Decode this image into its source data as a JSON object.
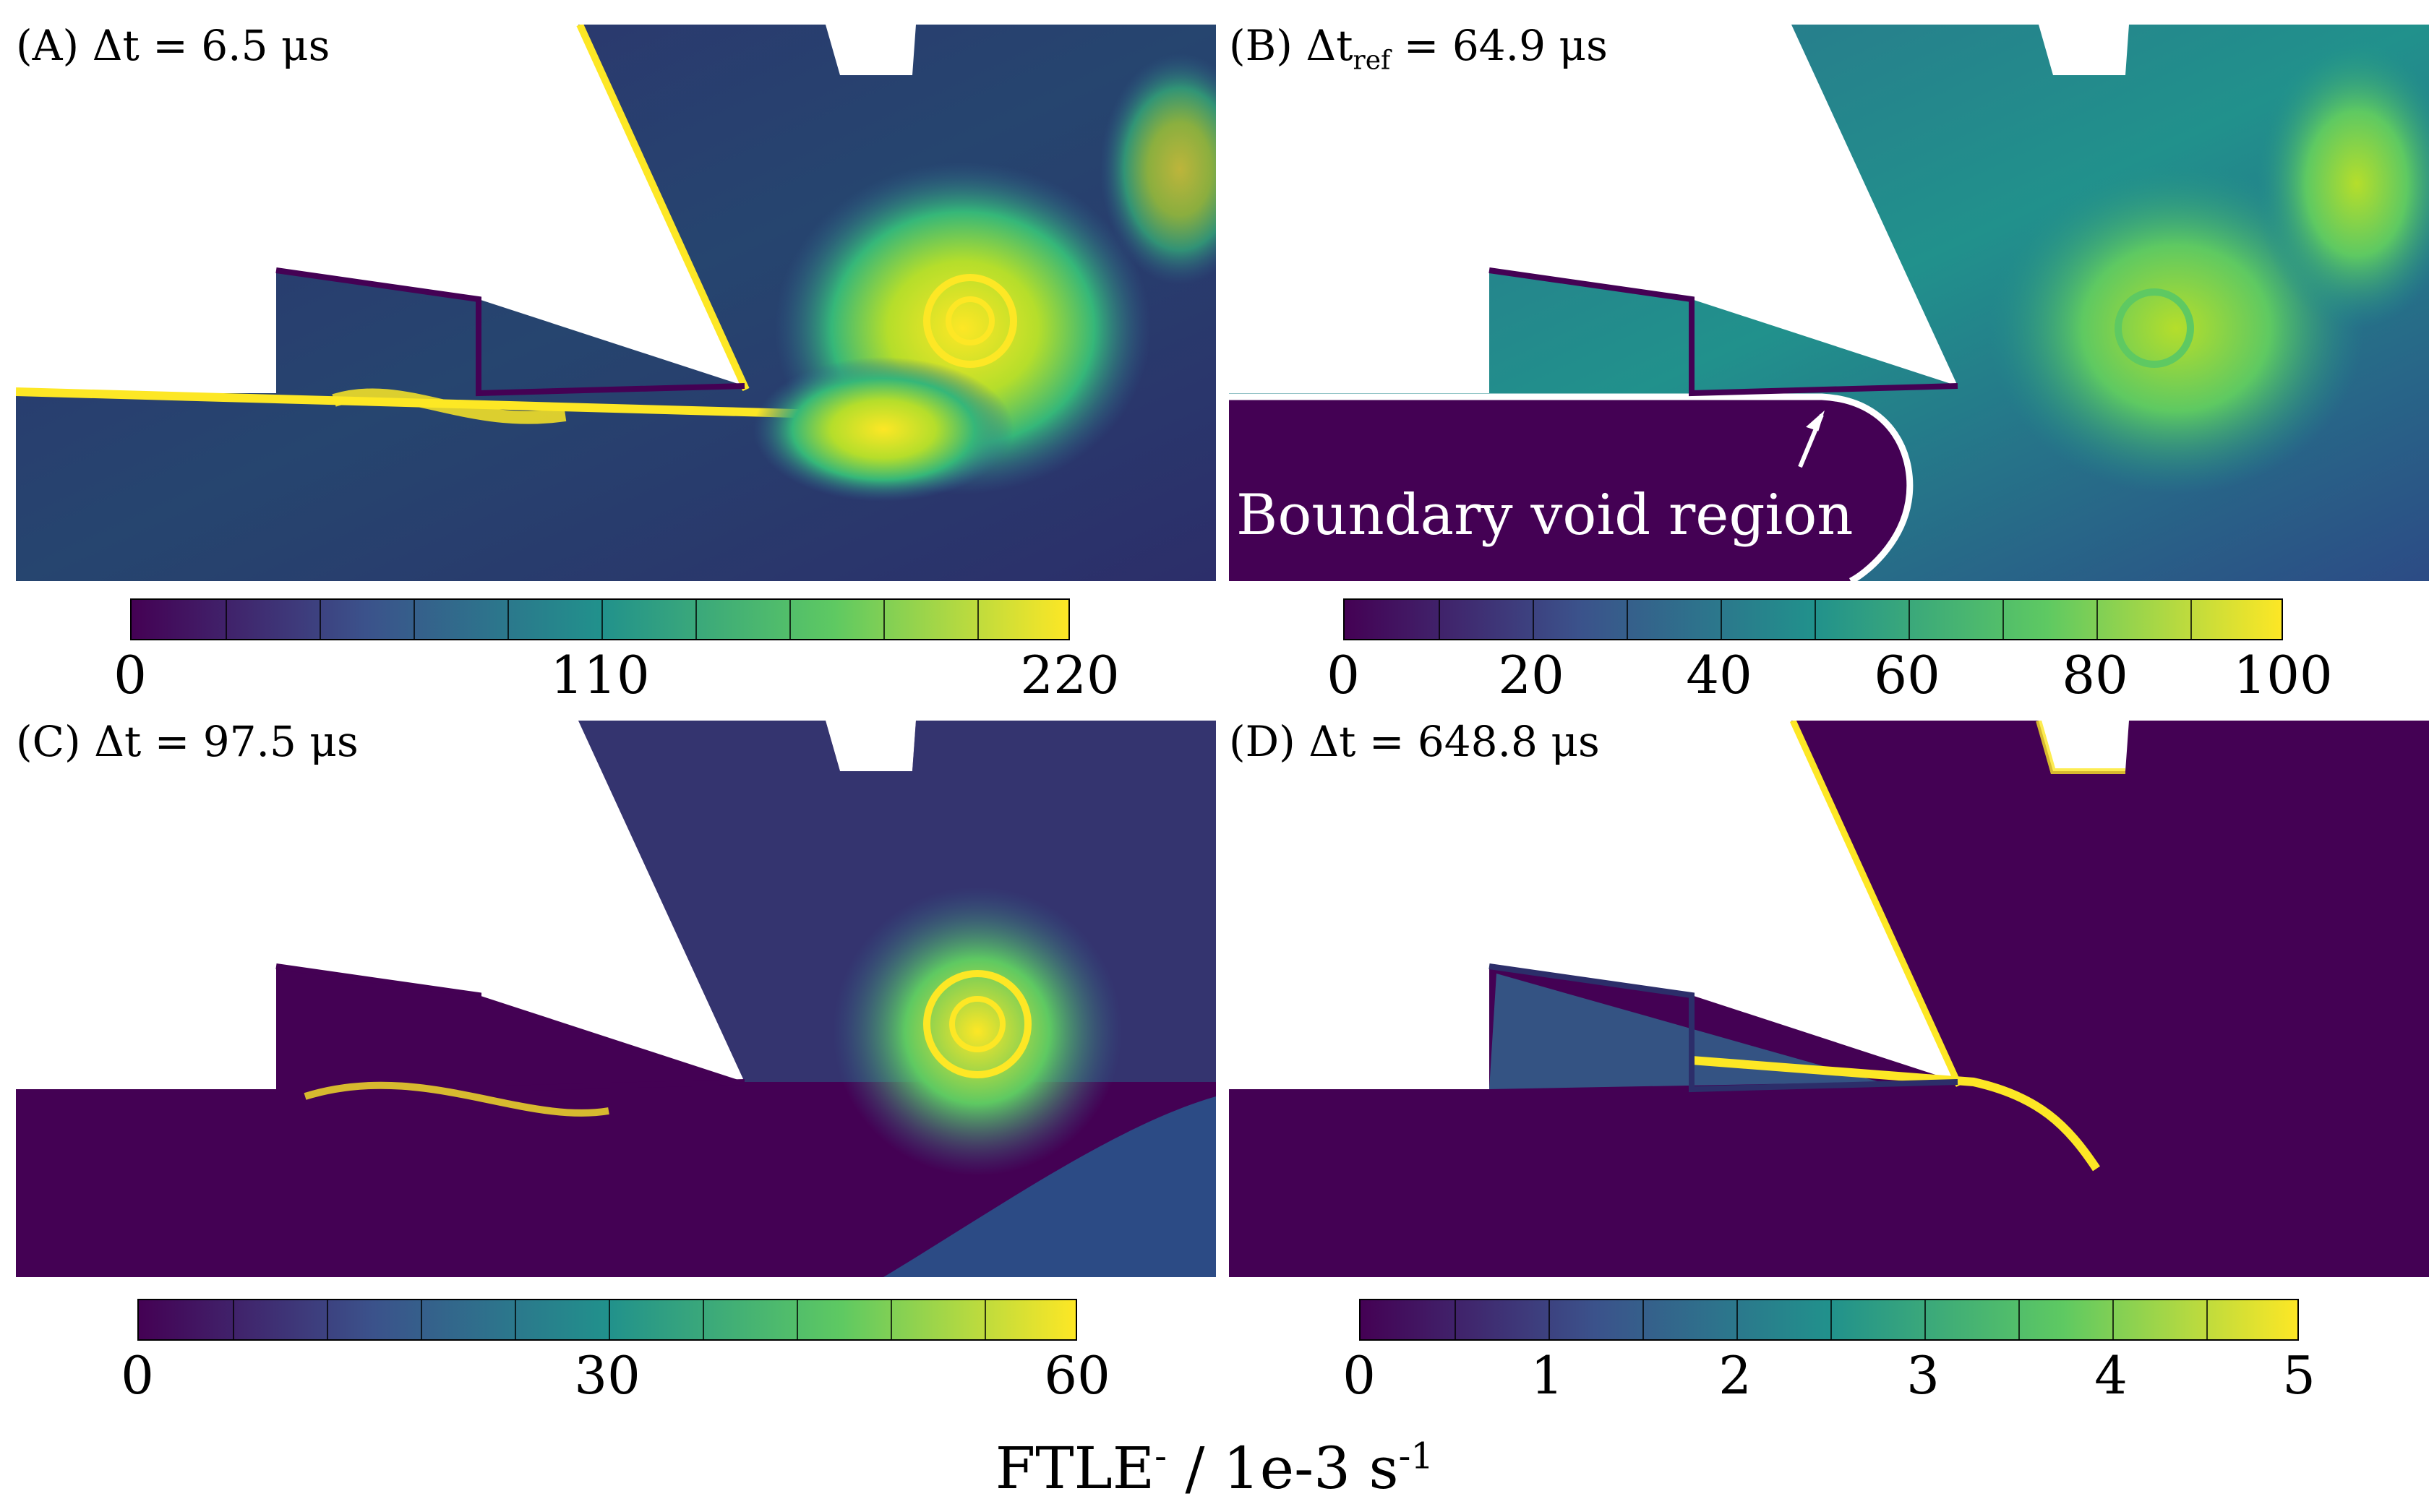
{
  "panels": [
    {
      "id": "A",
      "label_prefix": "(A) Δt = ",
      "label_value": "6.5 μs",
      "ticks": [
        "0",
        "110",
        "220"
      ]
    },
    {
      "id": "B",
      "label_prefix": "(B) Δt",
      "label_sub": "ref",
      "label_suffix": " = 64.9 μs",
      "ticks": [
        "0",
        "20",
        "40",
        "60",
        "80",
        "100"
      ],
      "annotation": "Boundary void region"
    },
    {
      "id": "C",
      "label_prefix": "(C) Δt = ",
      "label_value": "97.5 μs",
      "ticks": [
        "0",
        "30",
        "60"
      ]
    },
    {
      "id": "D",
      "label_prefix": "(D) Δt = ",
      "label_value": "648.8 μs",
      "ticks": [
        "0",
        "1",
        "2",
        "3",
        "4",
        "5"
      ]
    }
  ],
  "xlabel": {
    "main": "FTLE",
    "sup1": "-",
    "mid": " / 1e-3 s",
    "sup2": "-1"
  },
  "colormap": [
    "#440154",
    "#3b528b",
    "#21918c",
    "#5ec962",
    "#fde725"
  ],
  "colorbar_divisions": 10
}
